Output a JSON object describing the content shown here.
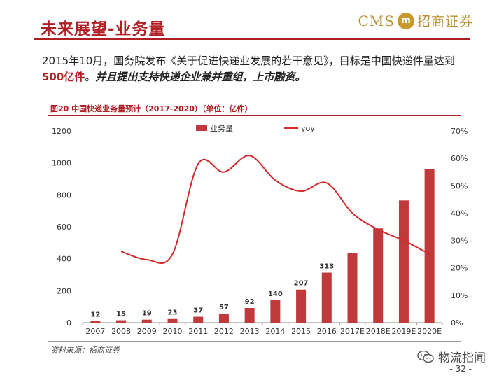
{
  "header": {
    "title": "未来展望-业务量",
    "logo_latin": "CMS",
    "logo_seal_text": "m",
    "logo_chinese": "招商证券"
  },
  "intro": {
    "part1": "2015年10月，国务院发布《关于促进快递业发展的若干意见》，目标是中国快递件量达到",
    "highlight": "500亿件",
    "part2": "。",
    "emphasis": "并且提出支持快递企业兼并重组，上市融资",
    "part3": "。"
  },
  "figure_title": "图20  中国快递业务量预计（2017-2020）（单位：亿件）",
  "source_note": "资料来源：招商证券",
  "watermark": {
    "text": "物流指闻",
    "icon": "wechat-icon"
  },
  "page_number": "- 32 -",
  "colors": {
    "accent": "#b01f24",
    "bar": "#c0393b",
    "line": "#d42a2a",
    "gold": "#b8912f"
  },
  "chart_data": {
    "type": "bar",
    "categories": [
      "2007",
      "2008",
      "2009",
      "2010",
      "2011",
      "2012",
      "2013",
      "2014",
      "2015",
      "2016",
      "2017E",
      "2018E",
      "2019E",
      "2020E"
    ],
    "series": [
      {
        "name": "业务量",
        "type": "bar",
        "axis": "left",
        "values": [
          12,
          15,
          19,
          23,
          37,
          57,
          92,
          140,
          207,
          313,
          435,
          590,
          765,
          960
        ],
        "data_labels": [
          "12",
          "15",
          "19",
          "23",
          "37",
          "57",
          "92",
          "140",
          "207",
          "313",
          "",
          "",
          "",
          ""
        ]
      },
      {
        "name": "yoy",
        "type": "line",
        "axis": "right",
        "values": [
          null,
          26,
          23,
          25,
          58,
          55,
          61,
          52,
          48,
          51,
          40,
          34,
          30,
          25
        ]
      }
    ],
    "left_axis": {
      "min": 0,
      "max": 1200,
      "ticks": [
        "0",
        "200",
        "400",
        "600",
        "800",
        "1000",
        "1200"
      ]
    },
    "right_axis": {
      "min": 0,
      "max": 70,
      "ticks": [
        "0%",
        "10%",
        "20%",
        "30%",
        "40%",
        "50%",
        "60%",
        "70%"
      ]
    },
    "grid": false,
    "legend_position": "top-center"
  }
}
